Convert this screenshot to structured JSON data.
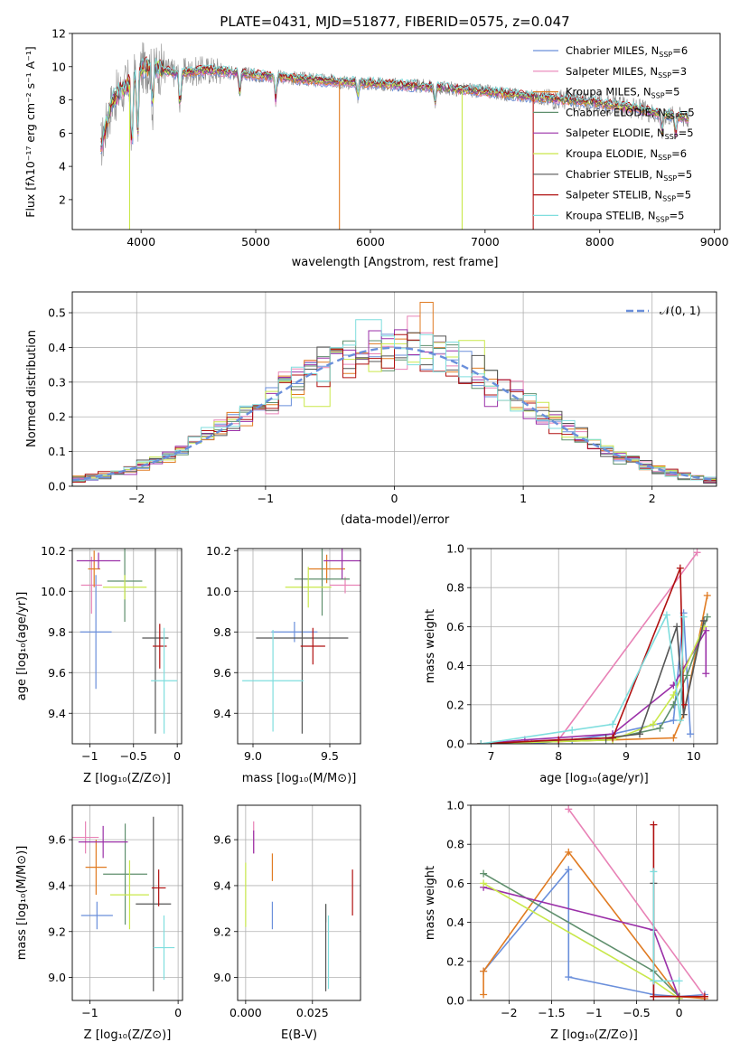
{
  "series_colors": [
    "#6a8fdb",
    "#e882b6",
    "#e07b22",
    "#5f8f6d",
    "#9b30a8",
    "#c9e84a",
    "#555555",
    "#b01010",
    "#7fdede"
  ],
  "legend1": [
    {
      "main": "Chabrier MILES, N",
      "sub": "SSP",
      "tail": "=6"
    },
    {
      "main": "Salpeter MILES, N",
      "sub": "SSP",
      "tail": "=3"
    },
    {
      "main": "Kroupa MILES, N",
      "sub": "SSP",
      "tail": "=5"
    },
    {
      "main": "Chabrier ELODIE, N",
      "sub": "SSP",
      "tail": "=5"
    },
    {
      "main": "Salpeter ELODIE, N",
      "sub": "SSP",
      "tail": "=5"
    },
    {
      "main": "Kroupa ELODIE, N",
      "sub": "SSP",
      "tail": "=6"
    },
    {
      "main": "Chabrier STELIB, N",
      "sub": "SSP",
      "tail": "=5"
    },
    {
      "main": "Salpeter STELIB, N",
      "sub": "SSP",
      "tail": "=5"
    },
    {
      "main": "Kroupa STELIB, N",
      "sub": "SSP",
      "tail": "=5"
    }
  ],
  "chart_data": [
    {
      "id": "spectrum",
      "type": "line",
      "title": "PLATE=0431, MJD=51877, FIBERID=0575, z=0.047",
      "xlabel": "wavelength [Angstrom, rest frame]",
      "ylabel": "Flux [fλ10⁻¹⁷ erg cm⁻² s⁻¹ A⁻¹]",
      "xlim": [
        3400,
        9050
      ],
      "ylim": [
        0.2,
        12
      ],
      "xticks": [
        4000,
        5000,
        6000,
        7000,
        8000,
        9000
      ],
      "yticks": [
        2,
        4,
        6,
        8,
        10,
        12
      ],
      "continuum": {
        "x": [
          3650,
          3750,
          3900,
          4000,
          4100,
          4300,
          4600,
          5000,
          5500,
          6000,
          6500,
          7000,
          7400,
          7700,
          8000,
          8300,
          8500,
          8700,
          8780
        ],
        "y": [
          5.2,
          8.0,
          9.0,
          9.9,
          10.0,
          9.6,
          9.8,
          9.5,
          9.2,
          9.0,
          8.8,
          8.5,
          8.2,
          8.0,
          7.8,
          7.5,
          7.2,
          7.0,
          6.9
        ]
      },
      "dips": [
        {
          "x": 3920,
          "y": 4.5
        },
        {
          "x": 3970,
          "y": 5.8
        },
        {
          "x": 4100,
          "y": 7.5
        },
        {
          "x": 4340,
          "y": 7.3
        },
        {
          "x": 4860,
          "y": 8.4
        },
        {
          "x": 5175,
          "y": 8.0
        },
        {
          "x": 5890,
          "y": 8.2
        },
        {
          "x": 6563,
          "y": 7.8
        },
        {
          "x": 8542,
          "y": 6.0
        },
        {
          "x": 8662,
          "y": 5.8
        }
      ],
      "drops": [
        {
          "series": 5,
          "x": 3900
        },
        {
          "series": 2,
          "x": 5730
        },
        {
          "series": 5,
          "x": 6800
        },
        {
          "series": 7,
          "x": 7420
        }
      ]
    },
    {
      "id": "residuals",
      "type": "step-histogram",
      "xlabel": "(data-model)/error",
      "ylabel": "Normed distribution",
      "xlim": [
        -2.5,
        2.5
      ],
      "ylim": [
        0,
        0.56
      ],
      "xticks": [
        -2,
        -1,
        0,
        1,
        2
      ],
      "yticks": [
        0.0,
        0.1,
        0.2,
        0.3,
        0.4,
        0.5
      ],
      "bins": {
        "start": -2.5,
        "width": 0.1,
        "count": 50
      },
      "reference": {
        "name": "𝒩(0, 1)",
        "mean": 0,
        "sigma": 1
      },
      "peaks": [
        {
          "series": 2,
          "x": 0.25,
          "y": 0.53
        },
        {
          "series": 8,
          "x": -0.2,
          "y": 0.48
        },
        {
          "series": 1,
          "x": 0.15,
          "y": 0.49
        },
        {
          "series": 5,
          "x": 0.6,
          "y": 0.42
        },
        {
          "series": 5,
          "x": -0.6,
          "y": 0.23
        },
        {
          "series": 4,
          "x": 0.75,
          "y": 0.23
        },
        {
          "series": 8,
          "x": 0.15,
          "y": 0.35
        }
      ]
    },
    {
      "id": "age_vs_Z",
      "type": "errorbar",
      "xlabel": "Z [log₁₀(Z/Z⊙)]",
      "ylabel": "age  [log₁₀(age/yr)]",
      "xlim": [
        -1.2,
        0.05
      ],
      "ylim": [
        9.25,
        10.21
      ],
      "xticks": [
        -1,
        -0.5,
        0
      ],
      "yticks": [
        9.4,
        9.6,
        9.8,
        10.0,
        10.2
      ],
      "points": [
        {
          "x": -0.93,
          "y": 9.8,
          "xerr": 0.18,
          "yerr": 0.28
        },
        {
          "x": -0.98,
          "y": 10.03,
          "xerr": 0.12,
          "yerr": 0.14
        },
        {
          "x": -0.95,
          "y": 10.11,
          "xerr": 0.07,
          "yerr": 0.09
        },
        {
          "x": -0.6,
          "y": 10.05,
          "xerr": 0.2,
          "yerr": 0.2
        },
        {
          "x": -0.9,
          "y": 10.15,
          "xerr": 0.25,
          "yerr": 0.04
        },
        {
          "x": -0.6,
          "y": 10.02,
          "xerr": 0.25,
          "yerr": 0.06
        },
        {
          "x": -0.25,
          "y": 9.77,
          "xerr": 0.15,
          "yerr": 0.47
        },
        {
          "x": -0.2,
          "y": 9.73,
          "xerr": 0.08,
          "yerr": 0.11
        },
        {
          "x": -0.15,
          "y": 9.56,
          "xerr": 0.15,
          "yerr": 0.26
        }
      ]
    },
    {
      "id": "age_vs_mass",
      "type": "errorbar",
      "xlabel": "mass [log₁₀(M/M⊙)]",
      "ylabel": "",
      "xlim": [
        8.9,
        9.7
      ],
      "ylim": [
        9.25,
        10.21
      ],
      "xticks": [
        9.0,
        9.5
      ],
      "yticks": [
        9.4,
        9.6,
        9.8,
        10.0,
        10.2
      ],
      "points": [
        {
          "x": 9.27,
          "y": 9.8,
          "xerr": 0.15,
          "yerr": 0.05
        },
        {
          "x": 9.6,
          "y": 10.03,
          "xerr": 0.1,
          "yerr": 0.04
        },
        {
          "x": 9.48,
          "y": 10.11,
          "xerr": 0.12,
          "yerr": 0.07
        },
        {
          "x": 9.45,
          "y": 10.06,
          "xerr": 0.18,
          "yerr": 0.18
        },
        {
          "x": 9.58,
          "y": 10.15,
          "xerr": 0.12,
          "yerr": 0.09
        },
        {
          "x": 9.36,
          "y": 10.02,
          "xerr": 0.15,
          "yerr": 0.1
        },
        {
          "x": 9.32,
          "y": 9.77,
          "xerr": 0.3,
          "yerr": 0.47
        },
        {
          "x": 9.39,
          "y": 9.73,
          "xerr": 0.08,
          "yerr": 0.09
        },
        {
          "x": 9.13,
          "y": 9.56,
          "xerr": 0.2,
          "yerr": 0.25
        }
      ]
    },
    {
      "id": "weight_vs_age",
      "type": "line",
      "xlabel": "age  [log₁₀(age/yr)]",
      "ylabel": "mass weight",
      "xlim": [
        6.7,
        10.35
      ],
      "ylim": [
        0,
        1
      ],
      "xticks": [
        7,
        8,
        9,
        10
      ],
      "yticks": [
        0.0,
        0.2,
        0.4,
        0.6,
        0.8,
        1.0
      ],
      "series": [
        {
          "x": [
            6.85,
            7.6,
            8.2,
            8.8,
            9.7,
            9.85,
            9.95
          ],
          "y": [
            0.0,
            0.0,
            0.02,
            0.05,
            0.12,
            0.67,
            0.05
          ]
        },
        {
          "x": [
            6.85,
            8.0,
            10.05
          ],
          "y": [
            0.0,
            0.02,
            0.98
          ]
        },
        {
          "x": [
            6.85,
            8.8,
            9.7,
            9.85,
            10.2
          ],
          "y": [
            0.0,
            0.02,
            0.03,
            0.15,
            0.76
          ]
        },
        {
          "x": [
            6.85,
            8.7,
            9.5,
            9.7,
            9.9,
            10.2
          ],
          "y": [
            0.0,
            0.02,
            0.08,
            0.2,
            0.35,
            0.65
          ]
        },
        {
          "x": [
            6.85,
            7.5,
            8.8,
            9.7,
            10.18,
            10.18
          ],
          "y": [
            0.0,
            0.02,
            0.05,
            0.3,
            0.58,
            0.36
          ]
        },
        {
          "x": [
            6.85,
            8.8,
            9.4,
            9.7,
            10.15
          ],
          "y": [
            0.0,
            0.02,
            0.1,
            0.25,
            0.6
          ]
        },
        {
          "x": [
            6.85,
            8.7,
            9.2,
            9.75,
            9.85,
            10.15
          ],
          "y": [
            0.0,
            0.03,
            0.05,
            0.6,
            0.15,
            0.63
          ]
        },
        {
          "x": [
            6.85,
            8.0,
            8.8,
            9.8,
            9.85
          ],
          "y": [
            0.0,
            0.02,
            0.03,
            0.9,
            0.2
          ]
        },
        {
          "x": [
            6.85,
            8.2,
            8.8,
            9.6,
            9.8,
            9.85
          ],
          "y": [
            0.0,
            0.07,
            0.1,
            0.66,
            0.12,
            0.65
          ]
        }
      ]
    },
    {
      "id": "mass_vs_Z",
      "type": "errorbar",
      "xlabel": "Z [log₁₀(Z/Z⊙)]",
      "ylabel": "mass [log₁₀(M/M⊙)]",
      "xlim": [
        -1.2,
        0.05
      ],
      "ylim": [
        8.9,
        9.75
      ],
      "xticks": [
        -1,
        0
      ],
      "yticks": [
        9.0,
        9.2,
        9.4,
        9.6
      ],
      "points": [
        {
          "x": -0.92,
          "y": 9.27,
          "xerr": 0.18,
          "yerr": 0.06
        },
        {
          "x": -1.05,
          "y": 9.61,
          "xerr": 0.15,
          "yerr": 0.07
        },
        {
          "x": -0.93,
          "y": 9.48,
          "xerr": 0.12,
          "yerr": 0.12
        },
        {
          "x": -0.6,
          "y": 9.45,
          "xerr": 0.25,
          "yerr": 0.22
        },
        {
          "x": -0.85,
          "y": 9.59,
          "xerr": 0.28,
          "yerr": 0.07
        },
        {
          "x": -0.55,
          "y": 9.36,
          "xerr": 0.22,
          "yerr": 0.15
        },
        {
          "x": -0.28,
          "y": 9.32,
          "xerr": 0.2,
          "yerr": 0.38
        },
        {
          "x": -0.22,
          "y": 9.39,
          "xerr": 0.08,
          "yerr": 0.08
        },
        {
          "x": -0.16,
          "y": 9.13,
          "xerr": 0.12,
          "yerr": 0.14
        }
      ]
    },
    {
      "id": "mass_vs_ebv",
      "type": "errorbar",
      "xlabel": "E(B-V)",
      "ylabel": "",
      "xlim": [
        -0.003,
        0.043
      ],
      "ylim": [
        8.9,
        9.75
      ],
      "xticks": [
        0.0,
        0.025
      ],
      "ytick_labels": [
        "9.0",
        "9.2",
        "9.4",
        "9.6"
      ],
      "yticks": [
        9.0,
        9.2,
        9.4,
        9.6
      ],
      "points": [
        {
          "x": 0.01,
          "y": 9.27,
          "yerr": 0.06
        },
        {
          "x": 0.003,
          "y": 9.61,
          "yerr": 0.07
        },
        {
          "x": 0.01,
          "y": 9.48,
          "yerr": 0.06
        },
        {
          "x": 0.03,
          "y": 9.28,
          "yerr": 0.04
        },
        {
          "x": 0.003,
          "y": 9.59,
          "yerr": 0.05
        },
        {
          "x": 0.0,
          "y": 9.36,
          "yerr": 0.14
        },
        {
          "x": 0.03,
          "y": 9.13,
          "yerr": 0.19
        },
        {
          "x": 0.04,
          "y": 9.37,
          "yerr": 0.1
        },
        {
          "x": 0.031,
          "y": 9.11,
          "yerr": 0.16
        }
      ]
    },
    {
      "id": "weight_vs_Z",
      "type": "line",
      "xlabel": "Z [log₁₀(Z/Z⊙)]",
      "ylabel": "mass weight",
      "xlim": [
        -2.45,
        0.45
      ],
      "ylim": [
        0,
        1
      ],
      "xticks": [
        -2.0,
        -1.5,
        -1.0,
        -0.5,
        0.0
      ],
      "yticks": [
        0.0,
        0.2,
        0.4,
        0.6,
        0.8,
        1.0
      ],
      "series": [
        {
          "x": [
            -2.3,
            -1.3,
            -1.3,
            -0.3,
            0.0,
            0.3
          ],
          "y": [
            0.15,
            0.67,
            0.12,
            0.03,
            0.02,
            0.03
          ]
        },
        {
          "x": [
            -1.3,
            0.3
          ],
          "y": [
            0.98,
            0.02
          ]
        },
        {
          "x": [
            -2.3,
            -2.3,
            -1.3,
            0.0,
            0.3
          ],
          "y": [
            0.03,
            0.15,
            0.76,
            0.02,
            0.01
          ]
        },
        {
          "x": [
            -2.3,
            -0.3,
            0.0
          ],
          "y": [
            0.65,
            0.15,
            0.02
          ]
        },
        {
          "x": [
            -2.3,
            -0.3,
            0.0
          ],
          "y": [
            0.58,
            0.36,
            0.01
          ]
        },
        {
          "x": [
            -2.3,
            -0.3,
            0.0
          ],
          "y": [
            0.6,
            0.1,
            0.01
          ]
        },
        {
          "x": [
            -0.3,
            -0.3,
            0.0
          ],
          "y": [
            0.6,
            0.02,
            0.02
          ]
        },
        {
          "x": [
            -0.3,
            -0.3,
            0.3
          ],
          "y": [
            0.9,
            0.02,
            0.02
          ]
        },
        {
          "x": [
            -0.3,
            -0.3,
            0.0
          ],
          "y": [
            0.66,
            0.1,
            0.1
          ]
        }
      ]
    }
  ]
}
